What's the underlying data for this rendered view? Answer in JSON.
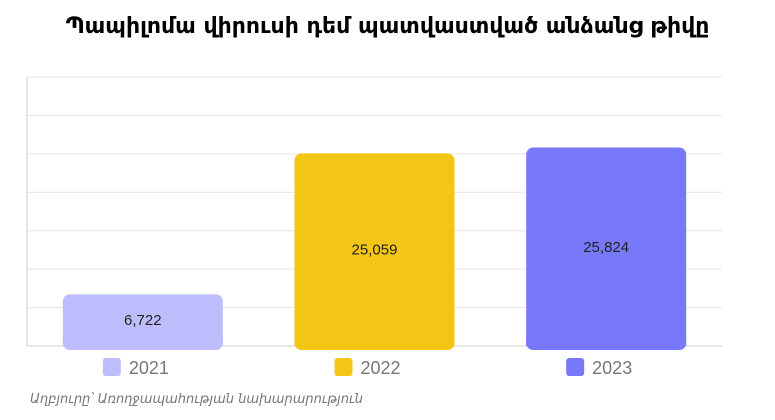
{
  "chart_data": {
    "type": "bar",
    "title": "Պապիլոմա վիրուսի դեմ պատվաստված անձանց թիվը",
    "categories": [
      "2021",
      "2022",
      "2023"
    ],
    "values": [
      6722,
      25059,
      25824
    ],
    "value_labels": [
      "6,722",
      "25,059",
      "25,824"
    ],
    "colors": [
      "#bdbdfd",
      "#f3c515",
      "#7878fb"
    ],
    "ylim": [
      0,
      35000
    ],
    "grid": true,
    "legend": "bottom",
    "source": "Աղբյուրը՝ Առողջապահության նախարարություն"
  }
}
